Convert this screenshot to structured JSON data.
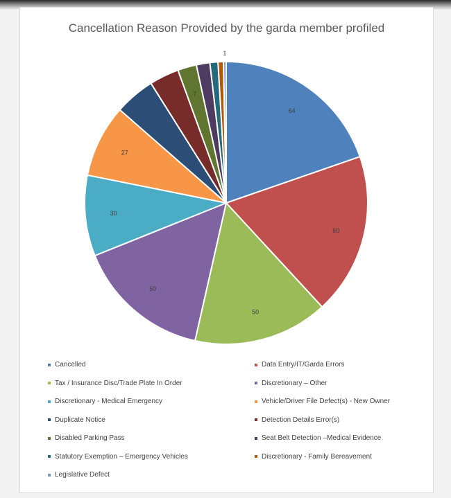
{
  "chart_data": {
    "type": "pie",
    "title": "Cancellation Reason Provided by the garda member profiled",
    "slices": [
      {
        "name": "Cancelled",
        "value": 64,
        "label": "64",
        "color": "#4f81bd"
      },
      {
        "name": "Data Entry/IT/Garda Errors",
        "value": 60,
        "label": "60",
        "color": "#c0504d"
      },
      {
        "name": "Tax / Insurance Disc/Trade Plate In Order",
        "value": 50,
        "label": "50",
        "color": "#9bbb59"
      },
      {
        "name": "Discretionary – Other",
        "value": 50,
        "label": "50",
        "color": "#8064a2"
      },
      {
        "name": "Discretionary - Medical Emergency",
        "value": 30,
        "label": "30",
        "color": "#4bacc6"
      },
      {
        "name": "Vehicle/Driver File Defect(s) - New Owner",
        "value": 27,
        "label": "27",
        "color": "#f79646"
      },
      {
        "name": "Duplicate Notice",
        "value": 15,
        "label": "",
        "color": "#2c4d75"
      },
      {
        "name": "Detection Details Error(s)",
        "value": 11,
        "label": "",
        "color": "#772c2a"
      },
      {
        "name": "Disabled Parking Pass",
        "value": 7,
        "label": "7",
        "color": "#5f7530"
      },
      {
        "name": "Seat Belt Detection –Medical Evidence",
        "value": 5,
        "label": "",
        "color": "#4d3b62"
      },
      {
        "name": "Statutory Exemption – Emergency Vehicles",
        "value": 3,
        "label": "",
        "color": "#276a7c"
      },
      {
        "name": "Discretionary - Family Bereavement",
        "value": 2,
        "label": "",
        "color": "#b65708"
      },
      {
        "name": "Legislative Defect",
        "value": 1,
        "label": "1",
        "color": "#729aca"
      }
    ],
    "legend_position": "bottom"
  }
}
